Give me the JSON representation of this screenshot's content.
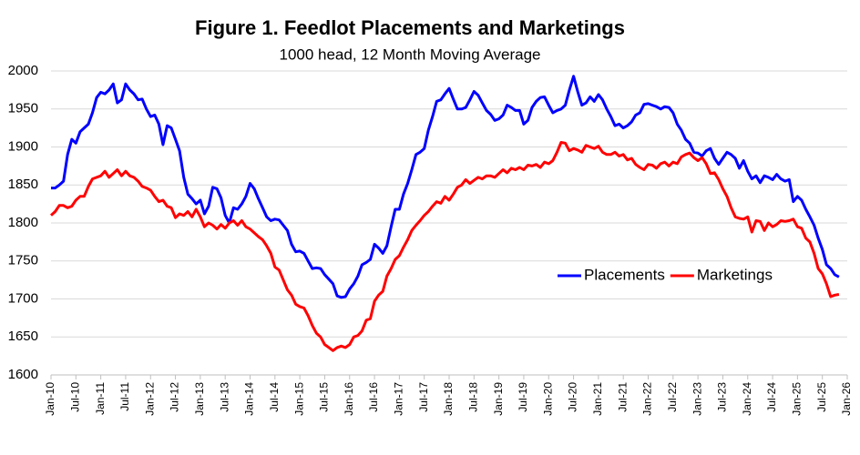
{
  "chart_data": {
    "type": "line",
    "title": "Figure 1. Feedlot Placements and Marketings",
    "subtitle": "1000 head, 12 Month Moving Average",
    "categories": [
      "Jan-10",
      null,
      null,
      null,
      null,
      null,
      "Jul-10",
      null,
      null,
      null,
      null,
      null,
      "Jan-11",
      null,
      null,
      null,
      null,
      null,
      "Jul-11",
      null,
      null,
      null,
      null,
      null,
      "Jan-12",
      null,
      null,
      null,
      null,
      null,
      "Jul-12",
      null,
      null,
      null,
      null,
      null,
      "Jan-13",
      null,
      null,
      null,
      null,
      null,
      "Jul-13",
      null,
      null,
      null,
      null,
      null,
      "Jan-14",
      null,
      null,
      null,
      null,
      null,
      "Jul-14",
      null,
      null,
      null,
      null,
      null,
      "Jan-15",
      null,
      null,
      null,
      null,
      null,
      "Jul-15",
      null,
      null,
      null,
      null,
      null,
      "Jan-16",
      null,
      null,
      null,
      null,
      null,
      "Jul-16",
      null,
      null,
      null,
      null,
      null,
      "Jan-17",
      null,
      null,
      null,
      null,
      null,
      "Jul-17",
      null,
      null,
      null,
      null,
      null,
      "Jan-18",
      null,
      null,
      null,
      null,
      null,
      "Jul-18",
      null,
      null,
      null,
      null,
      null,
      "Jan-19",
      null,
      null,
      null,
      null,
      null,
      "Jul-19",
      null,
      null,
      null,
      null,
      null,
      "Jan-20",
      null,
      null,
      null,
      null,
      null,
      "Jul-20",
      null,
      null,
      null,
      null,
      null,
      "Jan-21",
      null,
      null,
      null,
      null,
      null,
      "Jul-21",
      null,
      null,
      null,
      null,
      null,
      "Jan-22",
      null,
      null,
      null,
      null,
      null,
      "Jul-22",
      null,
      null,
      null,
      null,
      null,
      "Jan-23",
      null,
      null,
      null,
      null,
      null,
      "Jul-23",
      null,
      null,
      null,
      null,
      null,
      "Jan-24",
      null,
      null,
      null,
      null,
      null,
      "Jul-24",
      null,
      null,
      null,
      null,
      null,
      "Jan-25",
      null,
      null,
      null,
      null,
      null,
      "Jul-25",
      null,
      null,
      null,
      null,
      null,
      "Jan-26"
    ],
    "series": [
      {
        "name": "Placements",
        "color": "#0000ff",
        "values": [
          1846,
          1846,
          1850,
          1855,
          1890,
          1910,
          1905,
          1920,
          1925,
          1930,
          1945,
          1965,
          1972,
          1970,
          1975,
          1983,
          1958,
          1962,
          1983,
          1975,
          1970,
          1962,
          1963,
          1950,
          1940,
          1942,
          1930,
          1903,
          1928,
          1925,
          1910,
          1895,
          1860,
          1838,
          1832,
          1825,
          1830,
          1812,
          1822,
          1847,
          1845,
          1833,
          1810,
          1800,
          1820,
          1818,
          1825,
          1835,
          1852,
          1845,
          1832,
          1820,
          1808,
          1803,
          1805,
          1804,
          1797,
          1790,
          1772,
          1762,
          1763,
          1760,
          1750,
          1740,
          1741,
          1740,
          1732,
          1726,
          1720,
          1704,
          1702,
          1703,
          1713,
          1720,
          1730,
          1745,
          1748,
          1752,
          1772,
          1767,
          1760,
          1770,
          1795,
          1818,
          1818,
          1838,
          1852,
          1870,
          1890,
          1893,
          1898,
          1922,
          1940,
          1960,
          1962,
          1970,
          1977,
          1963,
          1950,
          1950,
          1952,
          1962,
          1973,
          1968,
          1958,
          1948,
          1943,
          1935,
          1937,
          1942,
          1955,
          1952,
          1948,
          1948,
          1930,
          1935,
          1952,
          1960,
          1965,
          1966,
          1955,
          1945,
          1948,
          1950,
          1955,
          1975,
          1993,
          1973,
          1955,
          1958,
          1966,
          1960,
          1969,
          1962,
          1950,
          1940,
          1928,
          1930,
          1925,
          1928,
          1933,
          1942,
          1945,
          1956,
          1957,
          1955,
          1953,
          1950,
          1953,
          1952,
          1945,
          1930,
          1922,
          1910,
          1905,
          1893,
          1892,
          1888,
          1895,
          1898,
          1885,
          1877,
          1885,
          1893,
          1890,
          1885,
          1872,
          1882,
          1868,
          1858,
          1862,
          1853,
          1862,
          1860,
          1857,
          1864,
          1858,
          1855,
          1857,
          1828,
          1835,
          1830,
          1818,
          1808,
          1797,
          1780,
          1765,
          1745,
          1740,
          1732,
          1729,
          null,
          null
        ]
      },
      {
        "name": "Marketings",
        "color": "#ff0000",
        "values": [
          1810,
          1815,
          1823,
          1823,
          1820,
          1822,
          1830,
          1835,
          1835,
          1848,
          1858,
          1860,
          1862,
          1868,
          1860,
          1865,
          1870,
          1862,
          1868,
          1862,
          1860,
          1855,
          1848,
          1846,
          1843,
          1835,
          1828,
          1830,
          1822,
          1820,
          1807,
          1812,
          1810,
          1815,
          1808,
          1818,
          1808,
          1795,
          1800,
          1797,
          1792,
          1798,
          1793,
          1800,
          1803,
          1797,
          1803,
          1795,
          1792,
          1787,
          1782,
          1778,
          1770,
          1760,
          1742,
          1738,
          1725,
          1712,
          1705,
          1693,
          1690,
          1688,
          1678,
          1665,
          1655,
          1650,
          1640,
          1636,
          1632,
          1636,
          1638,
          1636,
          1640,
          1650,
          1652,
          1658,
          1672,
          1674,
          1697,
          1705,
          1710,
          1730,
          1740,
          1752,
          1757,
          1768,
          1778,
          1790,
          1797,
          1803,
          1810,
          1815,
          1822,
          1828,
          1826,
          1835,
          1830,
          1838,
          1847,
          1850,
          1857,
          1852,
          1856,
          1860,
          1858,
          1862,
          1862,
          1860,
          1865,
          1870,
          1866,
          1872,
          1870,
          1873,
          1870,
          1876,
          1875,
          1877,
          1873,
          1880,
          1878,
          1882,
          1893,
          1906,
          1905,
          1895,
          1898,
          1896,
          1893,
          1902,
          1900,
          1898,
          1901,
          1893,
          1890,
          1890,
          1893,
          1888,
          1890,
          1883,
          1885,
          1877,
          1873,
          1870,
          1877,
          1876,
          1872,
          1878,
          1880,
          1875,
          1880,
          1878,
          1887,
          1890,
          1892,
          1886,
          1882,
          1886,
          1878,
          1865,
          1866,
          1857,
          1845,
          1835,
          1820,
          1808,
          1806,
          1805,
          1808,
          1788,
          1803,
          1802,
          1790,
          1800,
          1795,
          1798,
          1803,
          1802,
          1803,
          1805,
          1795,
          1793,
          1780,
          1775,
          1760,
          1740,
          1733,
          1720,
          1703,
          1705,
          1706,
          null,
          null
        ]
      }
    ],
    "ylim": [
      1600,
      2000
    ],
    "yticks": [
      1600,
      1650,
      1700,
      1750,
      1800,
      1850,
      1900,
      1950,
      2000
    ],
    "grid": true,
    "legend": "right"
  }
}
